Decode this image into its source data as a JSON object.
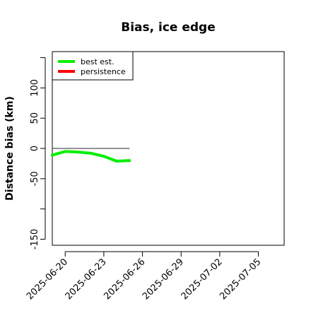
{
  "chart_data": {
    "type": "line",
    "title": "Bias, ice edge",
    "xlabel": "",
    "ylabel": "Distance bias (km)",
    "x_ticks": [
      "2025-06-20",
      "2025-06-23",
      "2025-06-26",
      "2025-06-29",
      "2025-07-02",
      "2025-07-05"
    ],
    "y_ticks": [
      -150,
      -50,
      0,
      50,
      100
    ],
    "y_ticks_unlabeled": [
      -100,
      150
    ],
    "xlim": [
      "2025-06-19",
      "2025-07-07"
    ],
    "ylim": [
      -160,
      160
    ],
    "grid": false,
    "legend_position": "top-left",
    "series": [
      {
        "name": "best est.",
        "color": "#00ee00",
        "x": [
          "2025-06-19",
          "2025-06-20",
          "2025-06-21",
          "2025-06-22",
          "2025-06-23",
          "2025-06-24",
          "2025-06-25"
        ],
        "values": [
          -11,
          -5,
          -6,
          -8,
          -13,
          -21,
          -20
        ]
      },
      {
        "name": "persistence",
        "color": "#ff0000",
        "x": [],
        "values": []
      }
    ],
    "reference_line": {
      "color": "#555555",
      "x": [
        "2025-06-19",
        "2025-06-25"
      ],
      "values": [
        0,
        0
      ]
    }
  }
}
